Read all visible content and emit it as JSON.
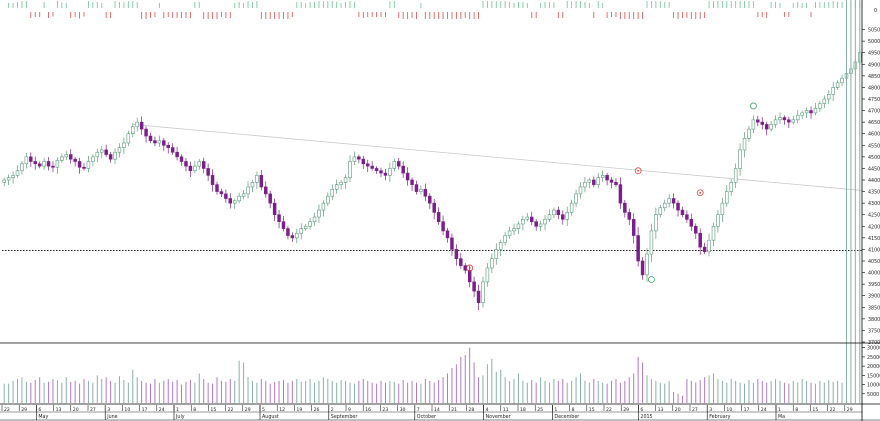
{
  "chart_data": {
    "type": "candlestick",
    "title": "",
    "price_axis": {
      "ylim": [
        3700,
        5100
      ],
      "ticks": [
        "5050",
        "5000",
        "4950",
        "4900",
        "4850",
        "4800",
        "4750",
        "4700",
        "4650",
        "4600",
        "4550",
        "4500",
        "4450",
        "4400",
        "4350",
        "4300",
        "4250",
        "4200",
        "4150",
        "4100",
        "4050",
        "4000",
        "3950",
        "3900",
        "3850",
        "3800",
        "3750",
        "3700"
      ],
      "tick_values": [
        5050,
        5000,
        4950,
        4900,
        4850,
        4800,
        4750,
        4700,
        4650,
        4600,
        4550,
        4500,
        4450,
        4400,
        4350,
        4300,
        4250,
        4200,
        4150,
        4100,
        4050,
        4000,
        3950,
        3900,
        3850,
        3800,
        3750,
        3700
      ],
      "support_level": 4095
    },
    "trendline": {
      "start_value": 4640,
      "end_value": 4355
    },
    "indicator_axis": {
      "ticks": [
        "0"
      ]
    },
    "volume_axis": {
      "ylim": [
        0,
        32000
      ],
      "ticks": [
        "30000",
        "25000",
        "20000",
        "15000",
        "10000",
        "5000"
      ],
      "tick_values": [
        30000,
        25000,
        20000,
        15000,
        10000,
        5000
      ]
    },
    "x_axis": {
      "day_labels": [
        "22",
        "29",
        "6",
        "13",
        "20",
        "27",
        "3",
        "10",
        "17",
        "24",
        "1",
        "8",
        "15",
        "22",
        "29",
        "5",
        "12",
        "19",
        "26",
        "2",
        "9",
        "16",
        "23",
        "30",
        "7",
        "14",
        "21",
        "28",
        "4",
        "11",
        "18",
        "25",
        "1",
        "8",
        "15",
        "22",
        "29",
        "6",
        "13",
        "20",
        "27",
        "3",
        "10",
        "17",
        "24",
        "1",
        "8",
        "15",
        "22",
        "29"
      ],
      "month_labels": [
        "May",
        "June",
        "July",
        "August",
        "September",
        "October",
        "November",
        "December",
        "2015",
        "February",
        "Ma"
      ]
    },
    "series": [
      {
        "name": "",
        "key": "price",
        "values": [
          4400,
          4410,
          4420,
          4440,
          4470,
          4500,
          4480,
          4470,
          4460,
          4480,
          4460,
          4455,
          4485,
          4500,
          4510,
          4490,
          4480,
          4455,
          4450,
          4480,
          4500,
          4520,
          4530,
          4510,
          4490,
          4520,
          4540,
          4560,
          4600,
          4630,
          4650,
          4620,
          4590,
          4570,
          4560,
          4570,
          4550,
          4540,
          4520,
          4500,
          4480,
          4460,
          4440,
          4460,
          4480,
          4450,
          4420,
          4380,
          4350,
          4340,
          4320,
          4300,
          4310,
          4330,
          4340,
          4370,
          4390,
          4420,
          4370,
          4340,
          4300,
          4250,
          4220,
          4190,
          4160,
          4150,
          4170,
          4190,
          4200,
          4220,
          4240,
          4270,
          4300,
          4330,
          4360,
          4380,
          4390,
          4410,
          4480,
          4500,
          4490,
          4470,
          4460,
          4450,
          4440,
          4430,
          4420,
          4450,
          4480,
          4460,
          4430,
          4400,
          4380,
          4350,
          4360,
          4330,
          4300,
          4260,
          4220,
          4180,
          4150,
          4100,
          4060,
          4030,
          4010,
          3960,
          3920,
          3870,
          3960,
          4020,
          4060,
          4100,
          4130,
          4160,
          4180,
          4190,
          4210,
          4230,
          4240,
          4220,
          4200,
          4210,
          4230,
          4250,
          4270,
          4250,
          4230,
          4260,
          4300,
          4340,
          4370,
          4390,
          4400,
          4380,
          4410,
          4420,
          4400,
          4390,
          4380,
          4300,
          4260,
          4230,
          4160,
          4050,
          3990,
          4080,
          4180,
          4250,
          4280,
          4300,
          4320,
          4300,
          4270,
          4250,
          4230,
          4200,
          4170,
          4110,
          4090,
          4140,
          4200,
          4250,
          4300,
          4350,
          4390,
          4450,
          4530,
          4580,
          4620,
          4660,
          4650,
          4640,
          4620,
          4640,
          4660,
          4670,
          4660,
          4650,
          4660,
          4680,
          4690,
          4700,
          4690,
          4710,
          4730,
          4750,
          4770,
          4800,
          4820,
          4840,
          4860,
          4880,
          4910,
          4950
        ]
      },
      {
        "name": "",
        "key": "volume",
        "values": [
          10500,
          10500,
          12000,
          13000,
          14000,
          11500,
          11000,
          12500,
          14000,
          11000,
          11500,
          13000,
          12500,
          11000,
          14000,
          11500,
          12000,
          10500,
          13000,
          12000,
          11000,
          15000,
          13000,
          14000,
          12000,
          11000,
          14500,
          12500,
          11000,
          18000,
          14000,
          12000,
          11000,
          10500,
          13000,
          11000,
          12000,
          13000,
          11500,
          12500,
          10000,
          11500,
          12500,
          11000,
          16000,
          13000,
          11000,
          10500,
          14000,
          12000,
          11500,
          13000,
          12000,
          23000,
          22000,
          14000,
          12000,
          11000,
          13000,
          12000,
          10500,
          11500,
          12000,
          12500,
          11000,
          12000,
          13000,
          11500,
          12000,
          13000,
          11000,
          12000,
          14000,
          13000,
          12000,
          11000,
          12500,
          12000,
          11000,
          10500,
          12000,
          13000,
          12000,
          11000,
          10500,
          12000,
          11000,
          12000,
          11500,
          10500,
          12500,
          11000,
          12000,
          11000,
          10500,
          13000,
          12000,
          11000,
          12500,
          14000,
          16000,
          19000,
          21000,
          25000,
          26000,
          30000,
          22000,
          14000,
          15000,
          21000,
          24000,
          17000,
          18000,
          14000,
          12000,
          13000,
          16000,
          12000,
          11000,
          12500,
          11000,
          14000,
          12000,
          11000,
          13000,
          12000,
          13000,
          11000,
          12000,
          14000,
          16000,
          12000,
          11000,
          13000,
          12000,
          11000,
          10500,
          12000,
          13000,
          11000,
          12000,
          14000,
          16000,
          25000,
          22000,
          15000,
          13000,
          12000,
          11000,
          10500,
          12000,
          6000,
          5000,
          4000,
          13000,
          12000,
          11000,
          12500,
          14000,
          15000,
          16000,
          13000,
          12000,
          11000,
          13000,
          12000,
          11000,
          10500,
          12500,
          11000,
          13000,
          12000,
          11000,
          12000,
          13000,
          12000,
          11000,
          10500,
          12000,
          11000,
          13000,
          12000,
          11000,
          10500,
          12000,
          11000,
          12500,
          11500,
          12000,
          11000
        ]
      }
    ],
    "markers": [
      {
        "type": "red-circle",
        "bar": 105,
        "value": 4020
      },
      {
        "type": "red-circle",
        "bar": 143,
        "value": 4440
      },
      {
        "type": "red-circle",
        "bar": 157,
        "value": 4345
      },
      {
        "type": "green-circle",
        "bar": 146,
        "value": 3970
      },
      {
        "type": "green-circle",
        "bar": 169,
        "value": 4720
      }
    ],
    "colors": {
      "up": "#ffffff",
      "up_border": "#5a9a7a",
      "down": "#7a1f8a",
      "indicator_pos": "#7ec7a0",
      "indicator_neg": "#e06060",
      "volume_bar": "#b07ac6",
      "volume_bar_alt": "#8ab0a6",
      "grid_line": "#000000",
      "trendline": "#c8c8c8",
      "marker_red": "#d84040",
      "marker_green": "#3aa064"
    }
  }
}
